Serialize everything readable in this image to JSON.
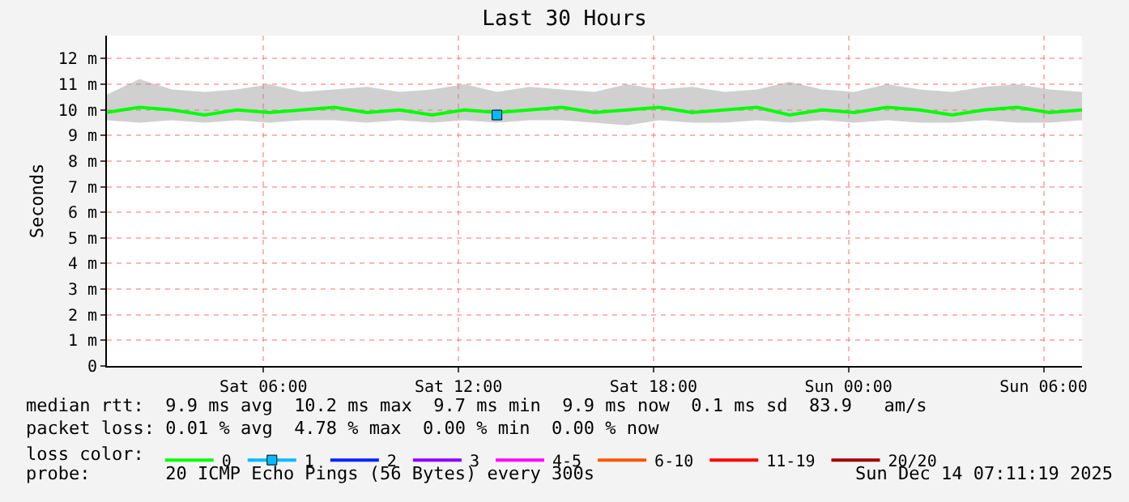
{
  "chart_data": {
    "type": "line",
    "title": "Last 30 Hours",
    "ylabel": "Seconds",
    "x": [
      "2025-12-13T01:11",
      "2025-12-13T02:11",
      "2025-12-13T03:11",
      "2025-12-13T04:11",
      "2025-12-13T05:11",
      "2025-12-13T06:11",
      "2025-12-13T07:11",
      "2025-12-13T08:11",
      "2025-12-13T09:11",
      "2025-12-13T10:11",
      "2025-12-13T11:11",
      "2025-12-13T12:11",
      "2025-12-13T13:11",
      "2025-12-13T14:11",
      "2025-12-13T15:11",
      "2025-12-13T16:11",
      "2025-12-13T17:11",
      "2025-12-13T18:11",
      "2025-12-13T19:11",
      "2025-12-13T20:11",
      "2025-12-13T21:11",
      "2025-12-13T22:11",
      "2025-12-13T23:11",
      "2025-12-14T00:11",
      "2025-12-14T01:11",
      "2025-12-14T02:11",
      "2025-12-14T03:11",
      "2025-12-14T04:11",
      "2025-12-14T05:11",
      "2025-12-14T06:11",
      "2025-12-14T07:11"
    ],
    "series": [
      {
        "name": "0",
        "color": "#00ff00",
        "values": [
          9.9,
          10.1,
          10.0,
          9.8,
          10.0,
          9.9,
          10.0,
          10.1,
          9.9,
          10.0,
          9.8,
          10.0,
          9.9,
          10.0,
          10.1,
          9.9,
          10.0,
          10.1,
          9.9,
          10.0,
          10.1,
          9.8,
          10.0,
          9.9,
          10.1,
          10.0,
          9.8,
          10.0,
          10.1,
          9.9,
          10.0
        ],
        "lower": [
          9.6,
          9.5,
          9.6,
          9.5,
          9.6,
          9.5,
          9.6,
          9.6,
          9.5,
          9.6,
          9.5,
          9.6,
          9.5,
          9.6,
          9.6,
          9.5,
          9.4,
          9.6,
          9.5,
          9.5,
          9.6,
          9.5,
          9.6,
          9.5,
          9.6,
          9.5,
          9.5,
          9.6,
          9.5,
          9.5,
          9.6
        ],
        "upper": [
          10.6,
          11.2,
          10.8,
          10.7,
          10.8,
          11.0,
          10.7,
          10.8,
          10.9,
          10.7,
          10.8,
          11.0,
          10.7,
          10.9,
          10.8,
          10.7,
          11.0,
          10.8,
          10.9,
          10.7,
          10.8,
          11.1,
          10.8,
          10.7,
          11.0,
          10.8,
          10.7,
          10.9,
          11.0,
          10.8,
          10.7
        ]
      },
      {
        "name": "1",
        "color": "#00bbff",
        "marker": "square",
        "values": [
          null,
          null,
          null,
          null,
          null,
          null,
          null,
          null,
          null,
          null,
          null,
          null,
          9.8,
          null,
          null,
          null,
          null,
          null,
          null,
          null,
          null,
          null,
          null,
          null,
          null,
          null,
          null,
          null,
          null,
          null,
          null
        ]
      },
      {
        "name": "2",
        "color": "#0022ff",
        "values": [
          null,
          null,
          null,
          null,
          null,
          null,
          null,
          null,
          null,
          null,
          null,
          null,
          null,
          null,
          null,
          null,
          null,
          null,
          null,
          null,
          null,
          null,
          null,
          null,
          null,
          null,
          null,
          null,
          null,
          null,
          null
        ]
      },
      {
        "name": "3",
        "color": "#8a00ff",
        "values": [
          null,
          null,
          null,
          null,
          null,
          null,
          null,
          null,
          null,
          null,
          null,
          null,
          null,
          null,
          null,
          null,
          null,
          null,
          null,
          null,
          null,
          null,
          null,
          null,
          null,
          null,
          null,
          null,
          null,
          null,
          null
        ]
      },
      {
        "name": "4-5",
        "color": "#ff00ff",
        "values": [
          null,
          null,
          null,
          null,
          null,
          null,
          null,
          null,
          null,
          null,
          null,
          null,
          null,
          null,
          null,
          null,
          null,
          null,
          null,
          null,
          null,
          null,
          null,
          null,
          null,
          null,
          null,
          null,
          null,
          null,
          null
        ]
      },
      {
        "name": "6-10",
        "color": "#ff5500",
        "values": [
          null,
          null,
          null,
          null,
          null,
          null,
          null,
          null,
          null,
          null,
          null,
          null,
          null,
          null,
          null,
          null,
          null,
          null,
          null,
          null,
          null,
          null,
          null,
          null,
          null,
          null,
          null,
          null,
          null,
          null,
          null
        ]
      },
      {
        "name": "11-19",
        "color": "#ff0000",
        "values": [
          null,
          null,
          null,
          null,
          null,
          null,
          null,
          null,
          null,
          null,
          null,
          null,
          null,
          null,
          null,
          null,
          null,
          null,
          null,
          null,
          null,
          null,
          null,
          null,
          null,
          null,
          null,
          null,
          null,
          null,
          null
        ]
      },
      {
        "name": "20/20",
        "color": "#a10000",
        "values": [
          null,
          null,
          null,
          null,
          null,
          null,
          null,
          null,
          null,
          null,
          null,
          null,
          null,
          null,
          null,
          null,
          null,
          null,
          null,
          null,
          null,
          null,
          null,
          null,
          null,
          null,
          null,
          null,
          null,
          null,
          null
        ]
      }
    ],
    "xlim": [
      "2025-12-13T01:11",
      "2025-12-14T07:11"
    ],
    "xticks": [
      {
        "value": "2025-12-13T06:00",
        "label": "Sat 06:00"
      },
      {
        "value": "2025-12-13T12:00",
        "label": "Sat 12:00"
      },
      {
        "value": "2025-12-13T18:00",
        "label": "Sat 18:00"
      },
      {
        "value": "2025-12-14T00:00",
        "label": "Sun 00:00"
      },
      {
        "value": "2025-12-14T06:00",
        "label": "Sun 06:00"
      }
    ],
    "ylim": [
      0,
      12.9
    ],
    "yticks": [
      0,
      {
        "value": 1,
        "label": "1 m"
      },
      {
        "value": 2,
        "label": "2 m"
      },
      {
        "value": 3,
        "label": "3 m"
      },
      {
        "value": 4,
        "label": "4 m"
      },
      {
        "value": 5,
        "label": "5 m"
      },
      {
        "value": 6,
        "label": "6 m"
      },
      {
        "value": 7,
        "label": "7 m"
      },
      {
        "value": 8,
        "label": "8 m"
      },
      {
        "value": 9,
        "label": "9 m"
      },
      {
        "value": 10,
        "label": "10 m"
      },
      {
        "value": 11,
        "label": "11 m"
      },
      {
        "value": 12,
        "label": "12 m"
      }
    ],
    "grid": true,
    "legend": "bottom",
    "legend_title": "loss color:",
    "marker": "none",
    "line_style": "solid",
    "annotations": [
      "median rtt:  9.9 ms avg  10.2 ms max  9.7 ms min  9.9 ms now  0.1 ms sd  83.9   am/s",
      "packet loss: 0.01 % avg  4.78 % max  0.00 % min  0.00 % now",
      "probe:       20 ICMP Echo Pings (56 Bytes) every 300s",
      "Sun Dec 14 07:11:19 2025"
    ]
  }
}
